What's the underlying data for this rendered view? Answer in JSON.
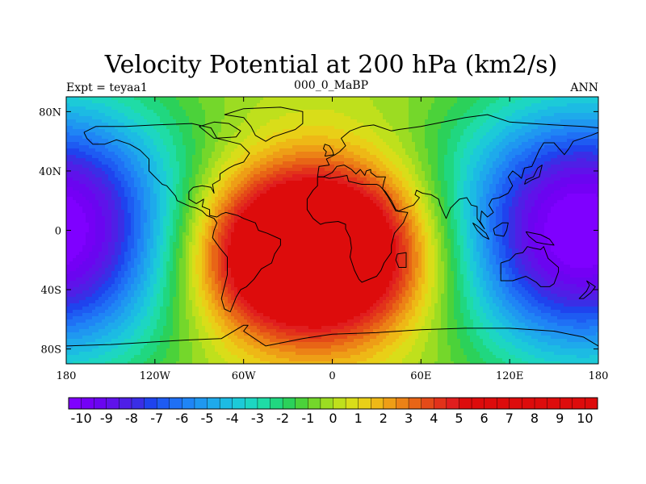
{
  "chart_data": {
    "type": "heatmap",
    "title": "Velocity Potential at 200 hPa (km2/s)",
    "left_string": "Expt = teyaa1",
    "center_string": "000_0_MaBP",
    "right_string": "ANN",
    "x_ticks": [
      {
        "value": -180,
        "label": "180"
      },
      {
        "value": -120,
        "label": "120W"
      },
      {
        "value": -60,
        "label": "60W"
      },
      {
        "value": 0,
        "label": "0"
      },
      {
        "value": 60,
        "label": "60E"
      },
      {
        "value": 120,
        "label": "120E"
      },
      {
        "value": 180,
        "label": "180"
      }
    ],
    "y_ticks": [
      {
        "value": 80,
        "label": "80N"
      },
      {
        "value": 40,
        "label": "40N"
      },
      {
        "value": 0,
        "label": "0"
      },
      {
        "value": -40,
        "label": "40S"
      },
      {
        "value": -80,
        "label": "80S"
      }
    ],
    "xlim": [
      -180,
      180
    ],
    "ylim": [
      -90,
      90
    ],
    "colorbar": {
      "min": -10,
      "max": 10,
      "step": 0.5,
      "labels": [
        "-10",
        "-9",
        "-8",
        "-7",
        "-6",
        "-5",
        "-4",
        "-3",
        "-2",
        "-1",
        "0",
        "1",
        "2",
        "3",
        "4",
        "5",
        "6",
        "7",
        "8",
        "9",
        "10"
      ]
    },
    "field_centers": [
      {
        "lon": -15,
        "lat": -15,
        "amp": 11.5,
        "sx": 55,
        "sy": 40
      },
      {
        "lon": 170,
        "lat": 0,
        "amp": -11,
        "sx": 65,
        "sy": 60
      }
    ],
    "colors": {
      "palette": [
        "#7f00ff",
        "#7400f5",
        "#6a05f0",
        "#5f12ea",
        "#4f1fe6",
        "#3a2ee6",
        "#1f43ee",
        "#1e5bf2",
        "#1f70f5",
        "#1f85f5",
        "#1f98f0",
        "#1eaaeb",
        "#1cbbe3",
        "#1ccad8",
        "#1dd6c2",
        "#1fdca6",
        "#20d780",
        "#2bd15a",
        "#4bd23a",
        "#74d72b",
        "#9cdc22",
        "#bfe01c",
        "#d9dd19",
        "#e9cf17",
        "#eeb816",
        "#ee9e16",
        "#ec8216",
        "#e86516",
        "#e44a18",
        "#e2321a",
        "#e01e1e",
        "#dd0c0c"
      ]
    }
  }
}
